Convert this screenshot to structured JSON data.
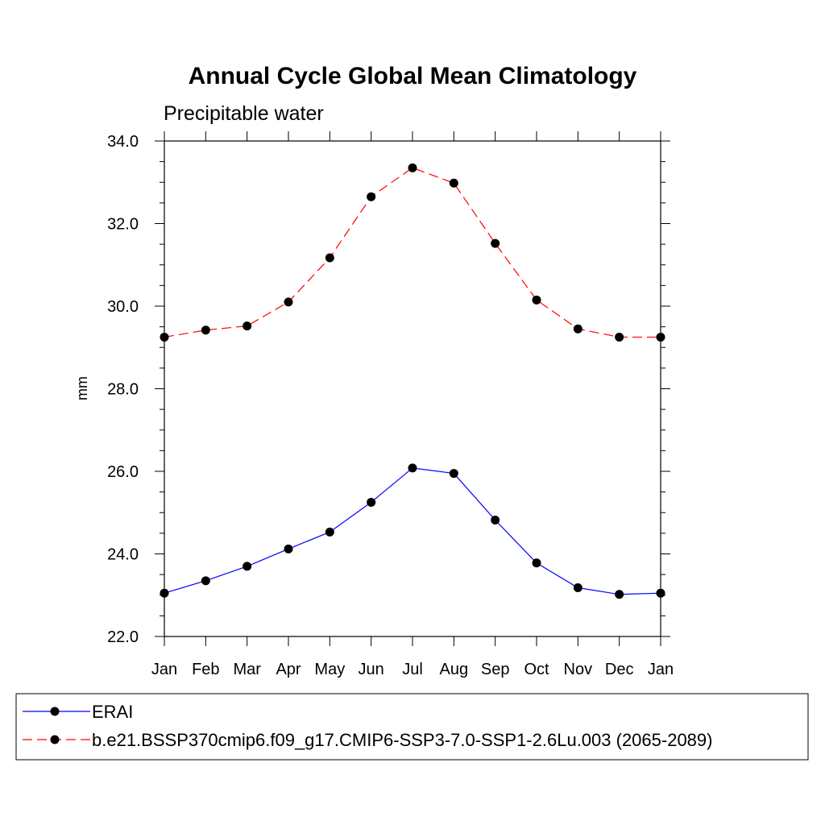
{
  "chart_data": {
    "type": "line",
    "title": "Annual Cycle Global Mean Climatology",
    "subtitle": "Precipitable water",
    "xlabel": "",
    "ylabel": "mm",
    "categories": [
      "Jan",
      "Feb",
      "Mar",
      "Apr",
      "May",
      "Jun",
      "Jul",
      "Aug",
      "Sep",
      "Oct",
      "Nov",
      "Dec",
      "Jan"
    ],
    "ylim": [
      22.0,
      34.0
    ],
    "yticks": [
      "22.0",
      "24.0",
      "26.0",
      "28.0",
      "30.0",
      "32.0",
      "34.0"
    ],
    "grid": false,
    "legend_position": "bottom",
    "series": [
      {
        "name": "ERAI",
        "color": "#0000ff",
        "line_style": "solid",
        "marker": "filled-circle",
        "values": [
          23.05,
          23.35,
          23.7,
          24.12,
          24.53,
          25.25,
          26.08,
          25.95,
          24.82,
          23.78,
          23.18,
          23.02,
          23.05
        ]
      },
      {
        "name": "b.e21.BSSP370cmip6.f09_g17.CMIP6-SSP3-7.0-SSP1-2.6Lu.003 (2065-2089)",
        "color": "#ff0000",
        "line_style": "dashed",
        "marker": "filled-circle",
        "values": [
          29.25,
          29.42,
          29.52,
          30.1,
          31.17,
          32.65,
          33.35,
          32.98,
          31.52,
          30.15,
          29.45,
          29.25,
          29.25
        ]
      }
    ]
  }
}
